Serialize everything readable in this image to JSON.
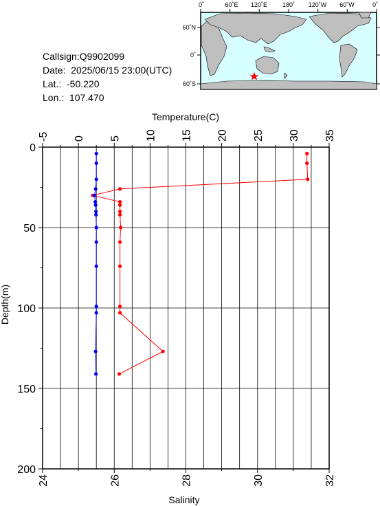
{
  "station": {
    "callsign": "Callsign:Q9902099",
    "date": "Date:  2025/06/15 23:00(UTC)",
    "lat": "Lat.:  -50.220",
    "lon": "Lon.:  107.470"
  },
  "map": {
    "lon_labels": [
      "0˚",
      "60˚E",
      "120˚E",
      "180˚",
      "120˚W",
      "60˚W",
      "0˚"
    ],
    "lat_labels": [
      "60˚N",
      "0˚",
      "60˚S"
    ],
    "ocean_color": "#d8ffff",
    "land_color": "#bebebe",
    "marker_color": "#ff0000",
    "marker_icon": "star-icon"
  },
  "chart_data": {
    "type": "line",
    "title": "",
    "top_axis": {
      "label": "Temperature(C)",
      "range": [
        -5,
        35
      ],
      "ticks": [
        "-5",
        "0",
        "5",
        "10",
        "15",
        "20",
        "25",
        "30",
        "35"
      ]
    },
    "bottom_axis": {
      "label": "Salinity",
      "range": [
        24,
        32
      ],
      "ticks": [
        "24",
        "26",
        "28",
        "30",
        "32"
      ]
    },
    "y_axis": {
      "label": "Depth(m)",
      "range": [
        0,
        200
      ],
      "inverted": true,
      "ticks": [
        "0",
        "50",
        "100",
        "150",
        "200"
      ]
    },
    "grid": true,
    "series": [
      {
        "axis": "temperature",
        "color": "#ff0000",
        "points": [
          {
            "depth": 4,
            "value": 31.9
          },
          {
            "depth": 10,
            "value": 31.9
          },
          {
            "depth": 20,
            "value": 32.0
          },
          {
            "depth": 26,
            "value": 5.8
          },
          {
            "depth": 30,
            "value": 2.0
          },
          {
            "depth": 34,
            "value": 5.8
          },
          {
            "depth": 36,
            "value": 5.8
          },
          {
            "depth": 40,
            "value": 5.8
          },
          {
            "depth": 42,
            "value": 5.8
          },
          {
            "depth": 50,
            "value": 5.9
          },
          {
            "depth": 59,
            "value": 5.8
          },
          {
            "depth": 74,
            "value": 5.8
          },
          {
            "depth": 99,
            "value": 5.8
          },
          {
            "depth": 103,
            "value": 5.8
          },
          {
            "depth": 127,
            "value": 11.8
          },
          {
            "depth": 141,
            "value": 5.7
          }
        ]
      },
      {
        "axis": "salinity",
        "color": "#0000ff",
        "points": [
          {
            "depth": 4,
            "value": 25.5
          },
          {
            "depth": 10,
            "value": 25.5
          },
          {
            "depth": 20,
            "value": 25.5
          },
          {
            "depth": 26,
            "value": 25.48
          },
          {
            "depth": 30,
            "value": 25.45
          },
          {
            "depth": 34,
            "value": 25.47
          },
          {
            "depth": 36,
            "value": 25.48
          },
          {
            "depth": 40,
            "value": 25.49
          },
          {
            "depth": 42,
            "value": 25.49
          },
          {
            "depth": 50,
            "value": 25.5
          },
          {
            "depth": 59,
            "value": 25.5
          },
          {
            "depth": 74,
            "value": 25.5
          },
          {
            "depth": 99,
            "value": 25.5
          },
          {
            "depth": 103,
            "value": 25.5
          },
          {
            "depth": 127,
            "value": 25.48
          },
          {
            "depth": 141,
            "value": 25.49
          }
        ]
      }
    ]
  }
}
